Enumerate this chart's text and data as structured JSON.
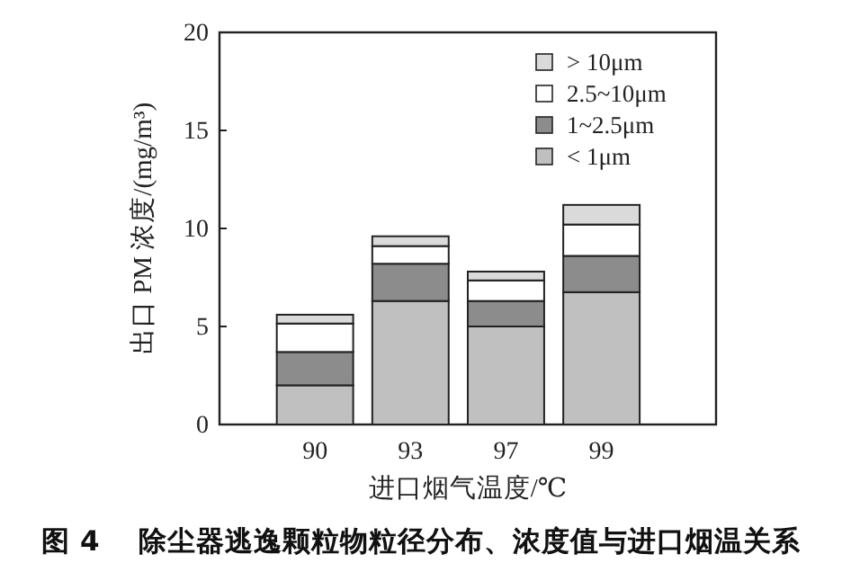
{
  "chart_data": {
    "type": "bar",
    "stacked": true,
    "xlabel": "进口烟气温度/℃",
    "ylabel": "出口 PM 浓度/(mg/m³)",
    "annotations": [
      "图 4    除尘器逃逸颗粒物粒径分布、浓度值与进口烟温关系"
    ],
    "categories": [
      "90",
      "93",
      "97",
      "99"
    ],
    "ylim": [
      0,
      20
    ],
    "yticks": [
      0,
      5,
      10,
      15,
      20
    ],
    "legend": "top right",
    "series": [
      {
        "name": "< 1μm",
        "color": "#c0c0c0",
        "values": [
          2.0,
          6.3,
          5.0,
          6.75
        ]
      },
      {
        "name": "1~2.5μm",
        "color": "#8c8c8c",
        "values": [
          1.7,
          1.9,
          1.3,
          1.85
        ]
      },
      {
        "name": "2.5~10μm",
        "color": "#ffffff",
        "values": [
          1.45,
          0.9,
          1.05,
          1.6
        ]
      },
      {
        "name": "> 10μm",
        "color": "#dadada",
        "values": [
          0.45,
          0.5,
          0.45,
          1.0
        ]
      }
    ]
  }
}
